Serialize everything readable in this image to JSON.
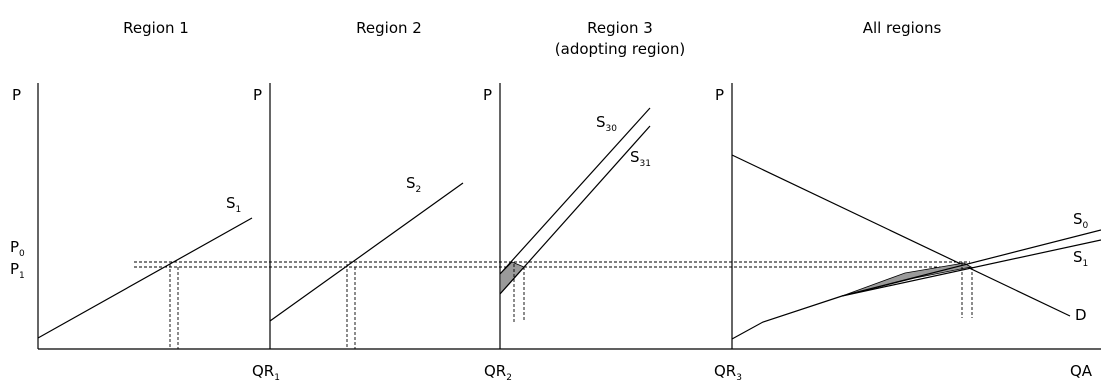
{
  "titles": {
    "region1": "Region 1",
    "region2": "Region 2",
    "region3_line1": "Region 3",
    "region3_line2": "(adopting region)",
    "all": "All regions"
  },
  "axis": {
    "p": "P",
    "p0": "P",
    "p0_sub": "0",
    "p1": "P",
    "p1_sub": "1",
    "qr1": "QR",
    "qr1_sub": "1",
    "qr2": "QR",
    "qr2_sub": "2",
    "qr3": "QR",
    "qr3_sub": "3",
    "qa": "QA"
  },
  "curves": {
    "s1": "S",
    "s1_sub": "1",
    "s2": "S",
    "s2_sub": "2",
    "s30": "S",
    "s30_sub": "30",
    "s31": "S",
    "s31_sub": "31",
    "s0_all": "S",
    "s0_all_sub": "0",
    "s1_all": "S",
    "s1_all_sub": "1",
    "d": "D"
  }
}
